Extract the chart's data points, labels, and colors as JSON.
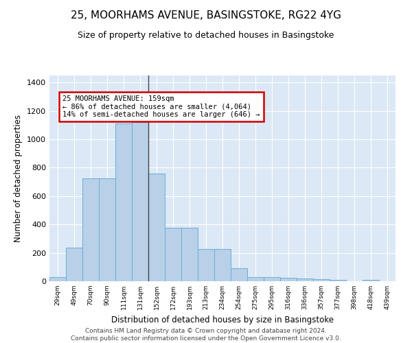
{
  "title": "25, MOORHAMS AVENUE, BASINGSTOKE, RG22 4YG",
  "subtitle": "Size of property relative to detached houses in Basingstoke",
  "xlabel": "Distribution of detached houses by size in Basingstoke",
  "ylabel": "Number of detached properties",
  "categories": [
    "29sqm",
    "49sqm",
    "70sqm",
    "90sqm",
    "111sqm",
    "131sqm",
    "152sqm",
    "172sqm",
    "193sqm",
    "213sqm",
    "234sqm",
    "254sqm",
    "275sqm",
    "295sqm",
    "316sqm",
    "336sqm",
    "357sqm",
    "377sqm",
    "398sqm",
    "418sqm",
    "439sqm"
  ],
  "values": [
    30,
    235,
    725,
    725,
    1110,
    1120,
    760,
    375,
    375,
    225,
    225,
    90,
    30,
    30,
    25,
    20,
    15,
    10,
    0,
    10,
    0
  ],
  "bar_color": "#b8d0e8",
  "bar_edge_color": "#6aaed6",
  "vline_x": 5.5,
  "annotation_text": "25 MOORHAMS AVENUE: 159sqm\n← 86% of detached houses are smaller (4,064)\n14% of semi-detached houses are larger (646) →",
  "annotation_box_color": "#ffffff",
  "annotation_box_edge": "#cc0000",
  "ylim": [
    0,
    1450
  ],
  "yticks": [
    0,
    200,
    400,
    600,
    800,
    1000,
    1200,
    1400
  ],
  "bg_color": "#dce8f5",
  "title_fontsize": 11,
  "subtitle_fontsize": 9,
  "xlabel_fontsize": 8.5,
  "ylabel_fontsize": 8.5,
  "footer_text": "Contains HM Land Registry data © Crown copyright and database right 2024.\nContains public sector information licensed under the Open Government Licence v3.0.",
  "footer_fontsize": 6.5
}
